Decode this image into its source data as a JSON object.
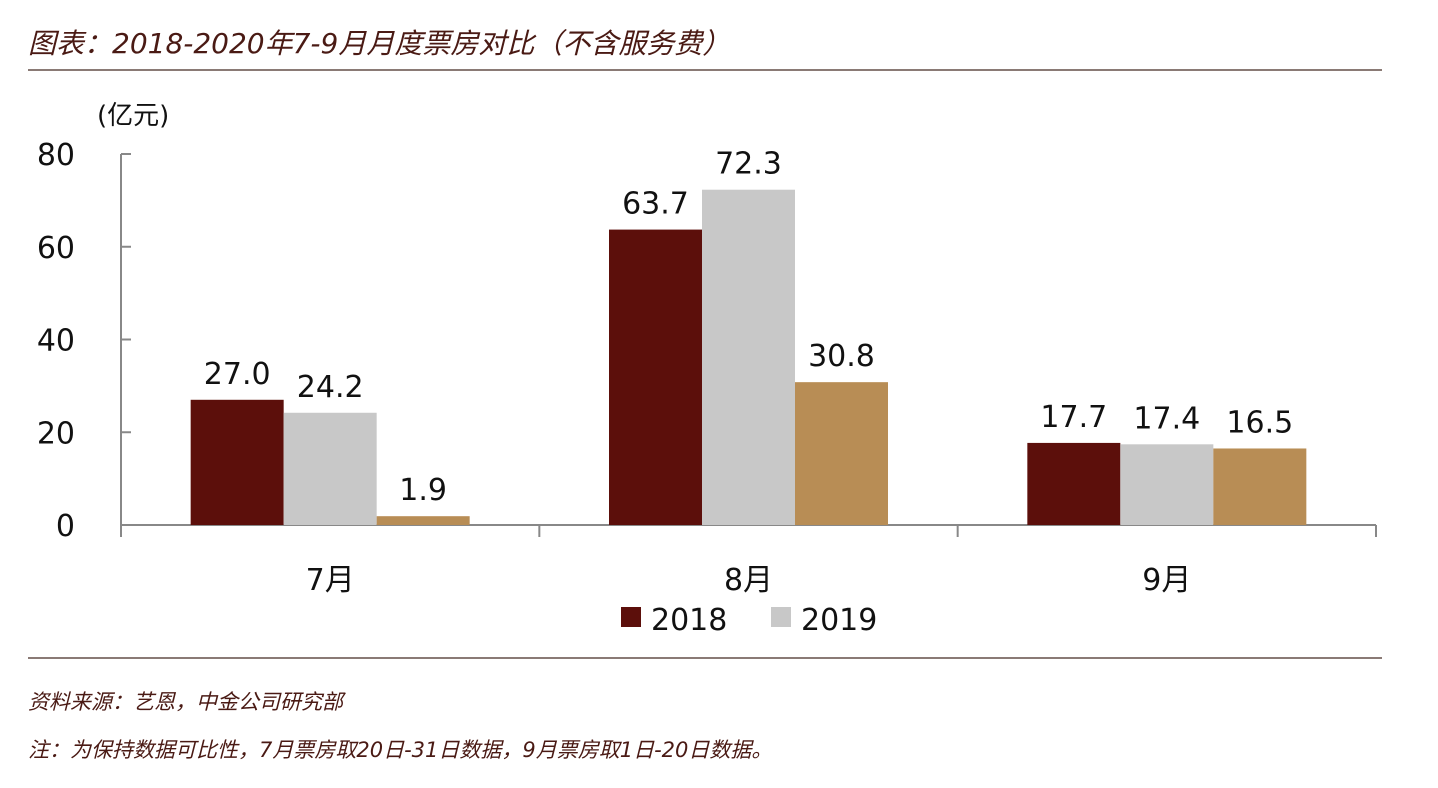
{
  "header": {
    "title": "图表：2018-2020年7-9月月度票房对比（不含服务费）"
  },
  "footer": {
    "source": "资料来源：艺恩，中金公司研究部",
    "note": "注：为保持数据可比性，7月票房取20日-31日数据，9月票房取1日-20日数据。"
  },
  "chart_data": {
    "type": "bar",
    "unit_label": "(亿元)",
    "categories": [
      "7月",
      "8月",
      "9月"
    ],
    "series": [
      {
        "name": "2018",
        "color": "#5c0f0b",
        "values": [
          27.0,
          63.7,
          17.7
        ],
        "labels": [
          "27.0",
          "63.7",
          "17.7"
        ]
      },
      {
        "name": "2019",
        "color": "#c8c8c8",
        "values": [
          24.2,
          72.3,
          17.4
        ],
        "labels": [
          "24.2",
          "72.3",
          "17.4"
        ]
      },
      {
        "color": "#b88d55",
        "values": [
          1.9,
          30.8,
          16.5
        ],
        "labels": [
          "1.9",
          "30.8",
          "16.5"
        ]
      }
    ],
    "ylim": [
      0,
      80
    ],
    "yticks": [
      "0",
      "20",
      "40",
      "60",
      "80"
    ],
    "ytick_values": [
      0,
      20,
      40,
      60,
      80
    ],
    "legend": {
      "position": "bottom-center",
      "entries": [
        "2018",
        "2019"
      ]
    },
    "grid": false
  }
}
